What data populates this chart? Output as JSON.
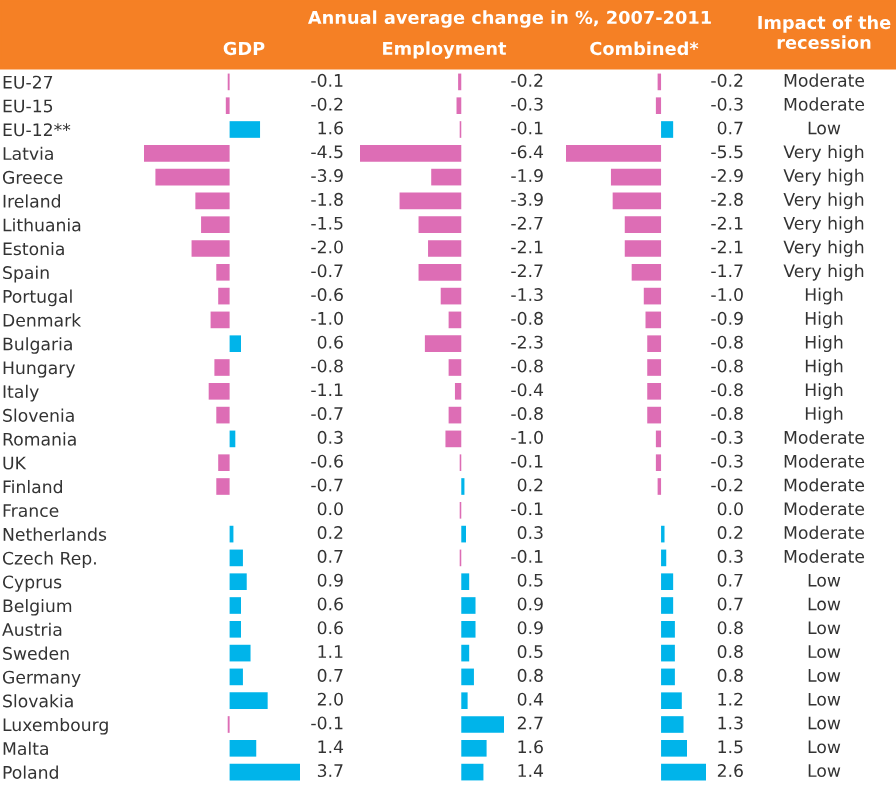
{
  "chart_data": [
    {
      "type": "other",
      "title": "Annual average change in %, 2007-2011"
    },
    {
      "type": "bar",
      "orientation": "horizontal",
      "title": "GDP",
      "tick_labels": "y",
      "data_labels": true,
      "grid": false,
      "legend": false,
      "categories": [
        "EU-27",
        "EU-15",
        "EU-12**",
        "Latvia",
        "Greece",
        "Ireland",
        "Lithuania",
        "Estonia",
        "Spain",
        "Portugal",
        "Denmark",
        "Bulgaria",
        "Hungary",
        "Italy",
        "Slovenia",
        "Romania",
        "UK",
        "Finland",
        "France",
        "Netherlands",
        "Czech Rep.",
        "Cyprus",
        "Belgium",
        "Austria",
        "Sweden",
        "Germany",
        "Slovakia",
        "Luxembourg",
        "Malta",
        "Poland"
      ],
      "values": [
        -0.1,
        -0.2,
        1.6,
        -4.5,
        -3.9,
        -1.8,
        -1.5,
        -2.0,
        -0.7,
        -0.6,
        -1.0,
        0.6,
        -0.8,
        -1.1,
        -0.7,
        0.3,
        -0.6,
        -0.7,
        0.0,
        0.2,
        0.7,
        0.9,
        0.6,
        0.6,
        1.1,
        0.7,
        2.0,
        -0.1,
        1.4,
        3.7
      ],
      "value_labels": [
        "-0.1",
        "-0.2",
        "1.6",
        "-4.5",
        "-3.9",
        "-1.8",
        "-1.5",
        "-2.0",
        "-0.7",
        "-0.6",
        "-1.0",
        "0.6",
        "-0.8",
        "-1.1",
        "-0.7",
        "0.3",
        "-0.6",
        "-0.7",
        "0.0",
        "0.2",
        "0.7",
        "0.9",
        "0.6",
        "0.6",
        "1.1",
        "0.7",
        "2.0",
        "-0.1",
        "1.4",
        "3.7"
      ],
      "colors": [
        "#dd6db5",
        "#dd6db5",
        "#00b4ea",
        "#dd6db5",
        "#dd6db5",
        "#dd6db5",
        "#dd6db5",
        "#dd6db5",
        "#dd6db5",
        "#dd6db5",
        "#dd6db5",
        "#00b4ea",
        "#dd6db5",
        "#dd6db5",
        "#dd6db5",
        "#00b4ea",
        "#dd6db5",
        "#dd6db5",
        "#00b4ea",
        "#00b4ea",
        "#00b4ea",
        "#00b4ea",
        "#00b4ea",
        "#00b4ea",
        "#00b4ea",
        "#00b4ea",
        "#00b4ea",
        "#dd6db5",
        "#00b4ea",
        "#00b4ea"
      ]
    },
    {
      "type": "bar",
      "orientation": "horizontal",
      "title": "Employment",
      "tick_labels": false,
      "data_labels": true,
      "grid": false,
      "legend": false,
      "categories": [
        null,
        null,
        null,
        null,
        null,
        null,
        null,
        null,
        null,
        null,
        null,
        null,
        null,
        null,
        null,
        null,
        null,
        null,
        null,
        null,
        null,
        null,
        null,
        null,
        null,
        null,
        null,
        null,
        null,
        null
      ],
      "values": [
        -0.2,
        -0.3,
        -0.1,
        -6.4,
        -1.9,
        -3.9,
        -2.7,
        -2.1,
        -2.7,
        -1.3,
        -0.8,
        -2.3,
        -0.8,
        -0.4,
        -0.8,
        -1.0,
        -0.1,
        0.2,
        -0.1,
        0.3,
        -0.1,
        0.5,
        0.9,
        0.9,
        0.5,
        0.8,
        0.4,
        2.7,
        1.6,
        1.4
      ],
      "value_labels": [
        "-0.2",
        "-0.3",
        "-0.1",
        "-6.4",
        "-1.9",
        "-3.9",
        "-2.7",
        "-2.1",
        "-2.7",
        "-1.3",
        "-0.8",
        "-2.3",
        "-0.8",
        "-0.4",
        "-0.8",
        "-1.0",
        "-0.1",
        "0.2",
        "-0.1",
        "0.3",
        "-0.1",
        "0.5",
        "0.9",
        "0.9",
        "0.5",
        "0.8",
        "0.4",
        "2.7",
        "1.6",
        "1.4"
      ],
      "colors": [
        "#dd6db5",
        "#dd6db5",
        "#dd6db5",
        "#dd6db5",
        "#dd6db5",
        "#dd6db5",
        "#dd6db5",
        "#dd6db5",
        "#dd6db5",
        "#dd6db5",
        "#dd6db5",
        "#dd6db5",
        "#dd6db5",
        "#dd6db5",
        "#dd6db5",
        "#dd6db5",
        "#dd6db5",
        "#00b4ea",
        "#dd6db5",
        "#00b4ea",
        "#dd6db5",
        "#00b4ea",
        "#00b4ea",
        "#00b4ea",
        "#00b4ea",
        "#00b4ea",
        "#00b4ea",
        "#00b4ea",
        "#00b4ea",
        "#00b4ea"
      ]
    },
    {
      "type": "bar",
      "orientation": "horizontal",
      "title": "Combined*",
      "tick_labels": false,
      "data_labels": true,
      "grid": false,
      "legend": false,
      "categories": [
        null,
        null,
        null,
        null,
        null,
        null,
        null,
        null,
        null,
        null,
        null,
        null,
        null,
        null,
        null,
        null,
        null,
        null,
        null,
        null,
        null,
        null,
        null,
        null,
        null,
        null,
        null,
        null,
        null,
        null
      ],
      "values": [
        -0.2,
        -0.3,
        0.7,
        -5.5,
        -2.9,
        -2.8,
        -2.1,
        -2.1,
        -1.7,
        -1.0,
        -0.9,
        -0.8,
        -0.8,
        -0.8,
        -0.8,
        -0.3,
        -0.3,
        -0.2,
        0.0,
        0.2,
        0.3,
        0.7,
        0.7,
        0.8,
        0.8,
        0.8,
        1.2,
        1.3,
        1.5,
        2.6
      ],
      "value_labels": [
        "-0.2",
        "-0.3",
        "0.7",
        "-5.5",
        "-2.9",
        "-2.8",
        "-2.1",
        "-2.1",
        "-1.7",
        "-1.0",
        "-0.9",
        "-0.8",
        "-0.8",
        "-0.8",
        "-0.8",
        "-0.3",
        "-0.3",
        "-0.2",
        "0.0",
        "0.2",
        "0.3",
        "0.7",
        "0.7",
        "0.8",
        "0.8",
        "0.8",
        "1.2",
        "1.3",
        "1.5",
        "2.6"
      ],
      "colors": [
        "#dd6db5",
        "#dd6db5",
        "#00b4ea",
        "#dd6db5",
        "#dd6db5",
        "#dd6db5",
        "#dd6db5",
        "#dd6db5",
        "#dd6db5",
        "#dd6db5",
        "#dd6db5",
        "#dd6db5",
        "#dd6db5",
        "#dd6db5",
        "#dd6db5",
        "#dd6db5",
        "#dd6db5",
        "#dd6db5",
        "#00b4ea",
        "#00b4ea",
        "#00b4ea",
        "#00b4ea",
        "#00b4ea",
        "#00b4ea",
        "#00b4ea",
        "#00b4ea",
        "#00b4ea",
        "#00b4ea",
        "#00b4ea",
        "#00b4ea"
      ]
    },
    {
      "type": "other",
      "title": "Impact of the recession",
      "annotations": [
        "Moderate",
        "Moderate",
        "Low",
        "Very high",
        "Very high",
        "Very high",
        "Very high",
        "Very high",
        "Very high",
        "High",
        "High",
        "High",
        "High",
        "High",
        "High",
        "Moderate",
        "Moderate",
        "Moderate",
        "Moderate",
        "Moderate",
        "Moderate",
        "Low",
        "Low",
        "Low",
        "Low",
        "Low",
        "Low",
        "Low",
        "Low",
        "Low"
      ]
    }
  ]
}
